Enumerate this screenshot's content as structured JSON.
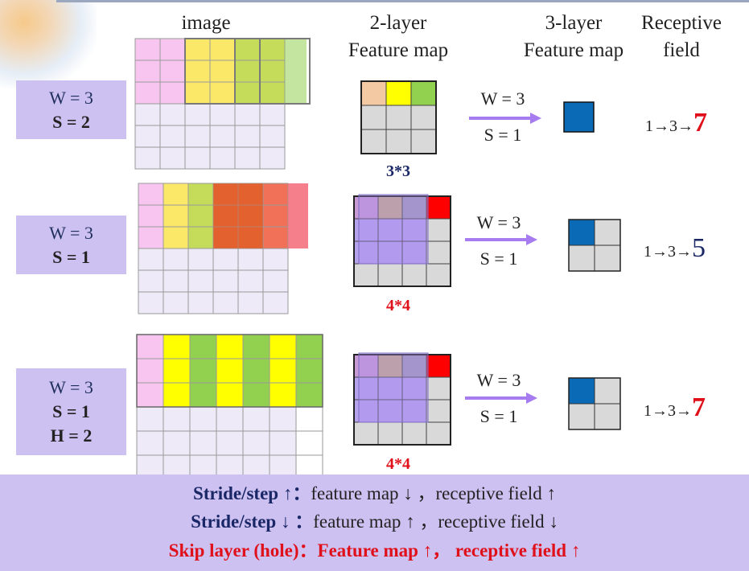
{
  "headers": {
    "image": "image",
    "two_layer": "2-layer\nFeature map",
    "three_layer": "3-layer\nFeature map",
    "receptive": "Receptive\nfield"
  },
  "rows": [
    {
      "params": [
        "W = 3",
        "S = 2"
      ],
      "caption": "3*3",
      "caption_color": "#1a2766",
      "arrow_top": "W = 3",
      "arrow_bottom": "S = 1",
      "rf_prefix": "1→3→",
      "rf_value": "7",
      "rf_color": "#e0101a"
    },
    {
      "params": [
        "W = 3",
        "S = 1"
      ],
      "caption": "4*4",
      "caption_color": "#e0101a",
      "arrow_top": "W = 3",
      "arrow_bottom": "S = 1",
      "rf_prefix": "1→3→",
      "rf_value": "5",
      "rf_color": "#1a2766"
    },
    {
      "params": [
        "W = 3",
        "S = 1",
        "H = 2"
      ],
      "caption": "4*4",
      "caption_color": "#e0101a",
      "arrow_top": "W = 3",
      "arrow_bottom": "S = 1",
      "rf_prefix": "1→3→",
      "rf_value": "7",
      "rf_color": "#e0101a"
    }
  ],
  "summary": {
    "line1": {
      "bold": "Stride/step ↑",
      "sep": "：",
      "rest": "feature map ↓ ，receptive field ↑"
    },
    "line2": {
      "bold": "Stride/step ↓",
      "sep": " ：",
      "rest": "feature map ↑ ，receptive field ↓"
    },
    "line3": "Skip layer (hole)：Feature map ↑，  receptive field ↑"
  },
  "colors": {
    "pink": "#f7c5f0",
    "yellow": "#fbe869",
    "bright_yellow": "#ffff00",
    "lime": "#c4dc5a",
    "green": "#92d050",
    "orange": "#e2622e",
    "salmon": "#f07058",
    "rose": "#f36a78",
    "peach": "#f3c9a3",
    "red": "#ff0000",
    "grid_grey": "#d9d9d9",
    "lavender": "#eeeaf8",
    "blue": "#0b6ab5",
    "arrow": "#a77cf0",
    "overlay": "#a98cf0"
  }
}
